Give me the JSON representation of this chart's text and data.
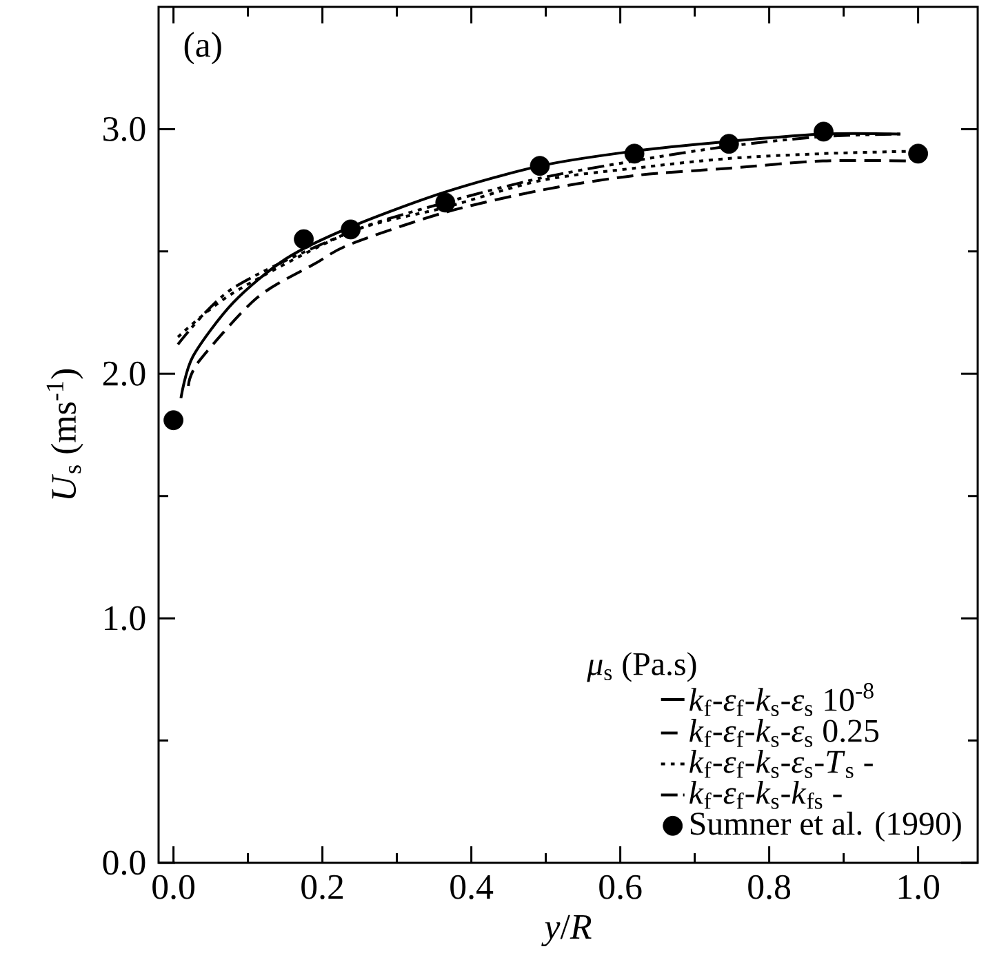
{
  "chart_data": {
    "type": "line",
    "xlabel": "*y*/*R*",
    "ylabel": "*U*$_{s}$ (ms$^{-1}$)",
    "legend_title": "*μ*$_{s}$ (Pa.s)",
    "annotations": [
      "(a)"
    ],
    "xlim": [
      -0.02,
      1.08
    ],
    "ylim": [
      0,
      3.5
    ],
    "xticks": [
      {
        "value": 0,
        "label": "0.0"
      },
      {
        "value": 0.2,
        "label": "0.2"
      },
      {
        "value": 0.4,
        "label": "0.4"
      },
      {
        "value": 0.6,
        "label": "0.6"
      },
      {
        "value": 0.8,
        "label": "0.8"
      },
      {
        "value": 1,
        "label": "1.0"
      }
    ],
    "yticks": [
      {
        "value": 0,
        "label": "0.0"
      },
      {
        "value": 1,
        "label": "1.0"
      },
      {
        "value": 2,
        "label": "2.0"
      },
      {
        "value": 3,
        "label": "3.0"
      }
    ],
    "grid": false,
    "legend": "bottom right",
    "series": [
      {
        "name": "*k*$_{f}$-*ε*$_{f}$-*k*$_{s}$-*ε*$_{s}$     10$^{-8}$",
        "color": "#000000",
        "line_style": "solid",
        "marker": "none",
        "x": [
          0.01,
          0.026,
          0.08,
          0.151,
          0.238,
          0.362,
          0.493,
          0.618,
          0.745,
          0.872,
          0.976
        ],
        "values": [
          1.9,
          2.07,
          2.29,
          2.47,
          2.6,
          2.74,
          2.85,
          2.91,
          2.95,
          2.98,
          2.98
        ]
      },
      {
        "name": "*k*$_{f}$-*ε*$_{f}$-*k*$_{s}$-*ε*$_{s}$     0.25",
        "color": "#000000",
        "line_style": "dashed",
        "marker": "none",
        "x": [
          0.02,
          0.034,
          0.112,
          0.19,
          0.238,
          0.365,
          0.493,
          0.618,
          0.745,
          0.872,
          0.995
        ],
        "values": [
          1.95,
          2.05,
          2.31,
          2.45,
          2.53,
          2.66,
          2.75,
          2.81,
          2.84,
          2.87,
          2.87
        ]
      },
      {
        "name": "*k*$_{f}$-*ε*$_{f}$-*k*$_{s}$-*ε*$_{s}$-*T*$_{s}$     -",
        "color": "#000000",
        "line_style": "dotted",
        "marker": "none",
        "x": [
          0.006,
          0.08,
          0.238,
          0.365,
          0.493,
          0.618,
          0.745,
          0.872,
          0.995
        ],
        "values": [
          2.15,
          2.33,
          2.58,
          2.68,
          2.79,
          2.84,
          2.88,
          2.9,
          2.91
        ]
      },
      {
        "name": "*k*$_{f}$-*ε*$_{f}$-*k*$_{s}$-*k*$_{fs}$     -",
        "color": "#000000",
        "line_style": "dashdotdotted",
        "marker": "none",
        "x": [
          0.006,
          0.08,
          0.238,
          0.365,
          0.493,
          0.618,
          0.745,
          0.872,
          0.976
        ],
        "values": [
          2.12,
          2.35,
          2.58,
          2.7,
          2.8,
          2.87,
          2.93,
          2.97,
          2.98
        ]
      },
      {
        "name": "Sumner et al. (1990)",
        "type": "scatter",
        "color": "#000000",
        "marker": "circle",
        "x": [
          0,
          0.175,
          0.238,
          0.365,
          0.492,
          0.619,
          0.746,
          0.873,
          1.0
        ],
        "values": [
          1.81,
          2.55,
          2.59,
          2.7,
          2.85,
          2.9,
          2.94,
          2.99,
          2.9
        ]
      }
    ]
  }
}
